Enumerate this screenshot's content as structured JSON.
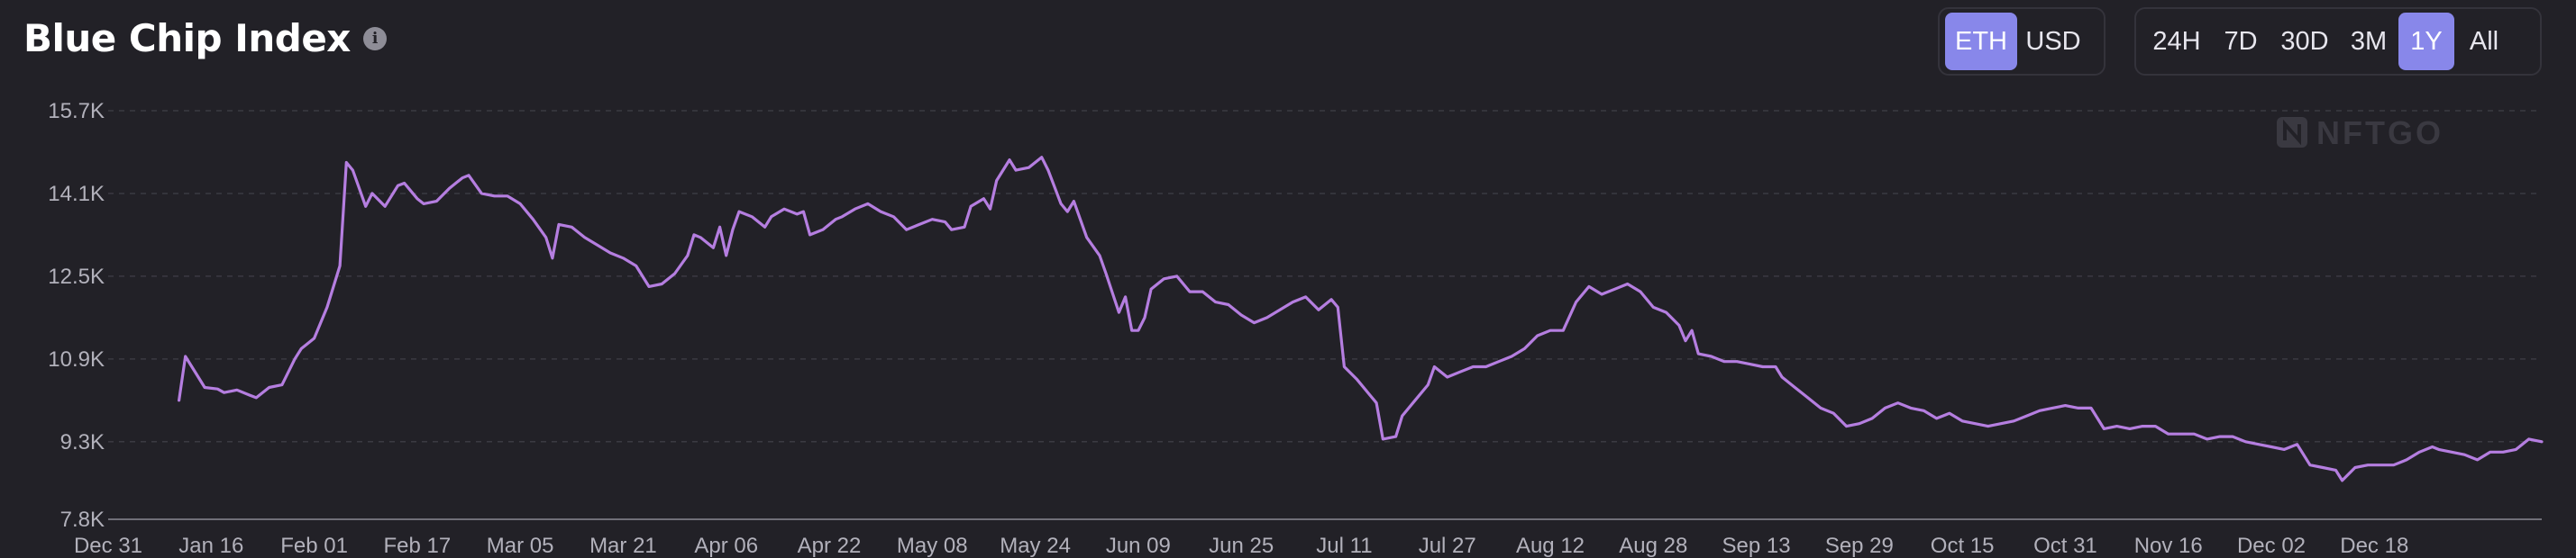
{
  "header": {
    "title": "Blue Chip Index",
    "info_icon": "info-icon",
    "info_glyph": "i"
  },
  "currency_toggle": {
    "options": [
      "ETH",
      "USD"
    ],
    "selected": "ETH"
  },
  "range_toggle": {
    "options": [
      "24H",
      "7D",
      "30D",
      "3M",
      "1Y",
      "All"
    ],
    "selected": "1Y"
  },
  "watermark": {
    "text": "NFTGO",
    "icon": "nftgo-logo-icon"
  },
  "colors": {
    "background": "#222127",
    "line": "#b57ee0",
    "accent": "#8887ea",
    "grid": "#3b3a42",
    "tick": "#b2b1bb"
  },
  "chart_data": {
    "type": "line",
    "title": "",
    "xlabel": "",
    "ylabel": "",
    "ylim": [
      7800,
      15700
    ],
    "y_ticks": [
      "7.8K",
      "9.3K",
      "10.9K",
      "12.5K",
      "14.1K",
      "15.7K"
    ],
    "y_tick_values": [
      7800,
      9300,
      10900,
      12500,
      14100,
      15700
    ],
    "x_ticks": [
      "Dec 31",
      "Jan 16",
      "Feb 01",
      "Feb 17",
      "Mar 05",
      "Mar 21",
      "Apr 06",
      "Apr 22",
      "May 08",
      "May 24",
      "Jun 09",
      "Jun 25",
      "Jul 11",
      "Jul 27",
      "Aug 12",
      "Aug 28",
      "Sep 13",
      "Sep 29",
      "Oct 15",
      "Oct 31",
      "Nov 16",
      "Dec 02",
      "Dec 18"
    ],
    "x_range_days": [
      0,
      378
    ],
    "grid": true,
    "series": [
      {
        "values": [
          [
            11,
            10100
          ],
          [
            12,
            10950
          ],
          [
            14,
            10550
          ],
          [
            15,
            10350
          ],
          [
            17,
            10320
          ],
          [
            18,
            10250
          ],
          [
            20,
            10300
          ],
          [
            22,
            10200
          ],
          [
            23,
            10150
          ],
          [
            25,
            10350
          ],
          [
            27,
            10400
          ],
          [
            29,
            10900
          ],
          [
            30,
            11100
          ],
          [
            32,
            11300
          ],
          [
            34,
            11900
          ],
          [
            36,
            12700
          ],
          [
            37,
            14700
          ],
          [
            38,
            14550
          ],
          [
            40,
            13850
          ],
          [
            41,
            14100
          ],
          [
            43,
            13850
          ],
          [
            45,
            14250
          ],
          [
            46,
            14300
          ],
          [
            48,
            14000
          ],
          [
            49,
            13900
          ],
          [
            51,
            13950
          ],
          [
            53,
            14200
          ],
          [
            55,
            14400
          ],
          [
            56,
            14450
          ],
          [
            58,
            14100
          ],
          [
            60,
            14050
          ],
          [
            62,
            14050
          ],
          [
            64,
            13900
          ],
          [
            66,
            13600
          ],
          [
            68,
            13250
          ],
          [
            69,
            12850
          ],
          [
            70,
            13500
          ],
          [
            72,
            13450
          ],
          [
            74,
            13250
          ],
          [
            76,
            13100
          ],
          [
            78,
            12950
          ],
          [
            80,
            12850
          ],
          [
            82,
            12700
          ],
          [
            84,
            12300
          ],
          [
            86,
            12350
          ],
          [
            88,
            12550
          ],
          [
            90,
            12900
          ],
          [
            91,
            13300
          ],
          [
            92,
            13250
          ],
          [
            94,
            13050
          ],
          [
            95,
            13450
          ],
          [
            96,
            12900
          ],
          [
            97,
            13400
          ],
          [
            98,
            13750
          ],
          [
            100,
            13650
          ],
          [
            102,
            13450
          ],
          [
            103,
            13650
          ],
          [
            105,
            13800
          ],
          [
            107,
            13700
          ],
          [
            108,
            13750
          ],
          [
            109,
            13300
          ],
          [
            111,
            13400
          ],
          [
            113,
            13600
          ],
          [
            114,
            13650
          ],
          [
            116,
            13800
          ],
          [
            118,
            13900
          ],
          [
            120,
            13750
          ],
          [
            122,
            13650
          ],
          [
            124,
            13400
          ],
          [
            126,
            13500
          ],
          [
            128,
            13600
          ],
          [
            130,
            13550
          ],
          [
            131,
            13400
          ],
          [
            133,
            13450
          ],
          [
            134,
            13850
          ],
          [
            136,
            14000
          ],
          [
            137,
            13800
          ],
          [
            138,
            14350
          ],
          [
            140,
            14750
          ],
          [
            141,
            14550
          ],
          [
            143,
            14600
          ],
          [
            145,
            14800
          ],
          [
            146,
            14550
          ],
          [
            148,
            13900
          ],
          [
            149,
            13750
          ],
          [
            150,
            13950
          ],
          [
            152,
            13250
          ],
          [
            154,
            12900
          ],
          [
            155,
            12550
          ],
          [
            157,
            11800
          ],
          [
            158,
            12100
          ],
          [
            159,
            11450
          ],
          [
            160,
            11450
          ],
          [
            161,
            11700
          ],
          [
            162,
            12250
          ],
          [
            164,
            12450
          ],
          [
            166,
            12500
          ],
          [
            168,
            12200
          ],
          [
            170,
            12200
          ],
          [
            172,
            12000
          ],
          [
            174,
            11950
          ],
          [
            176,
            11750
          ],
          [
            178,
            11600
          ],
          [
            180,
            11700
          ],
          [
            182,
            11850
          ],
          [
            184,
            12000
          ],
          [
            186,
            12100
          ],
          [
            188,
            11850
          ],
          [
            190,
            12050
          ],
          [
            191,
            11900
          ],
          [
            192,
            10750
          ],
          [
            194,
            10500
          ],
          [
            196,
            10200
          ],
          [
            197,
            10050
          ],
          [
            198,
            9350
          ],
          [
            200,
            9400
          ],
          [
            201,
            9800
          ],
          [
            203,
            10100
          ],
          [
            205,
            10400
          ],
          [
            206,
            10750
          ],
          [
            208,
            10550
          ],
          [
            210,
            10650
          ],
          [
            212,
            10750
          ],
          [
            214,
            10750
          ],
          [
            216,
            10850
          ],
          [
            218,
            10950
          ],
          [
            220,
            11100
          ],
          [
            222,
            11350
          ],
          [
            224,
            11450
          ],
          [
            226,
            11450
          ],
          [
            228,
            12000
          ],
          [
            230,
            12300
          ],
          [
            232,
            12150
          ],
          [
            234,
            12250
          ],
          [
            236,
            12350
          ],
          [
            238,
            12200
          ],
          [
            240,
            11900
          ],
          [
            242,
            11800
          ],
          [
            244,
            11550
          ],
          [
            245,
            11250
          ],
          [
            246,
            11450
          ],
          [
            247,
            11000
          ],
          [
            249,
            10950
          ],
          [
            251,
            10850
          ],
          [
            253,
            10850
          ],
          [
            255,
            10800
          ],
          [
            257,
            10750
          ],
          [
            259,
            10750
          ],
          [
            260,
            10550
          ],
          [
            262,
            10350
          ],
          [
            264,
            10150
          ],
          [
            266,
            9950
          ],
          [
            268,
            9850
          ],
          [
            270,
            9600
          ],
          [
            272,
            9650
          ],
          [
            274,
            9750
          ],
          [
            276,
            9950
          ],
          [
            278,
            10050
          ],
          [
            280,
            9950
          ],
          [
            282,
            9900
          ],
          [
            284,
            9750
          ],
          [
            286,
            9850
          ],
          [
            288,
            9700
          ],
          [
            290,
            9650
          ],
          [
            292,
            9600
          ],
          [
            294,
            9650
          ],
          [
            296,
            9700
          ],
          [
            298,
            9800
          ],
          [
            300,
            9900
          ],
          [
            302,
            9950
          ],
          [
            304,
            10000
          ],
          [
            306,
            9950
          ],
          [
            308,
            9950
          ],
          [
            310,
            9550
          ],
          [
            312,
            9600
          ],
          [
            314,
            9550
          ],
          [
            316,
            9600
          ],
          [
            318,
            9600
          ],
          [
            320,
            9450
          ],
          [
            322,
            9450
          ],
          [
            324,
            9450
          ],
          [
            326,
            9350
          ],
          [
            328,
            9400
          ],
          [
            330,
            9400
          ],
          [
            332,
            9300
          ],
          [
            334,
            9250
          ],
          [
            336,
            9200
          ],
          [
            338,
            9150
          ],
          [
            340,
            9250
          ],
          [
            342,
            8850
          ],
          [
            344,
            8800
          ],
          [
            346,
            8750
          ],
          [
            347,
            8550
          ],
          [
            349,
            8800
          ],
          [
            351,
            8850
          ],
          [
            353,
            8850
          ],
          [
            355,
            8850
          ],
          [
            357,
            8950
          ],
          [
            359,
            9100
          ],
          [
            361,
            9200
          ],
          [
            362,
            9150
          ],
          [
            364,
            9100
          ],
          [
            366,
            9050
          ],
          [
            368,
            8950
          ],
          [
            370,
            9100
          ],
          [
            372,
            9100
          ],
          [
            374,
            9150
          ],
          [
            376,
            9350
          ],
          [
            378,
            9300
          ]
        ]
      }
    ]
  }
}
